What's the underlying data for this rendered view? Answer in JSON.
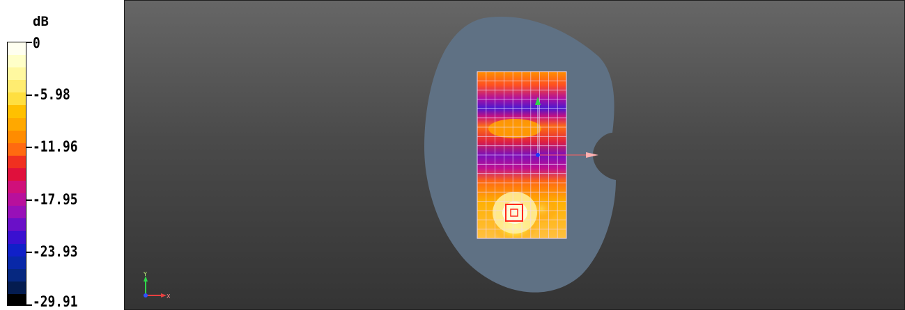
{
  "legend": {
    "unit": "dB",
    "labels": [
      "0",
      "-5.98",
      "-11.96",
      "-17.95",
      "-23.93",
      "-29.91"
    ],
    "colors": [
      "#fffff0",
      "#ffffc8",
      "#fff8a0",
      "#ffec70",
      "#ffdf40",
      "#ffc000",
      "#ffa800",
      "#ff8c00",
      "#ff6a10",
      "#f03020",
      "#e0103c",
      "#d0107a",
      "#b8109c",
      "#9810b8",
      "#6a10c8",
      "#3a10d0",
      "#1020c8",
      "#0828a8",
      "#062880",
      "#041c50",
      "#000000"
    ]
  },
  "viewport": {
    "axis_x_label": "X",
    "axis_y_label": "Y",
    "colors": {
      "phantom": "#5f7184",
      "grid": "#f0d8ff",
      "source": "#ff2a1a",
      "y_arrow": "#2fd84a",
      "x_arrow": "#e84040"
    }
  }
}
